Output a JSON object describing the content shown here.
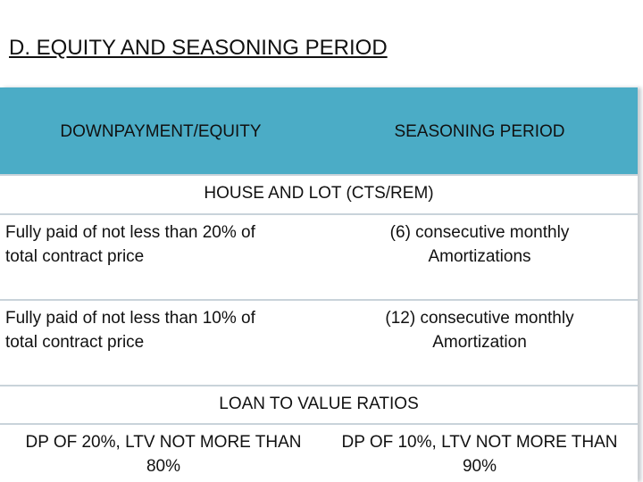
{
  "header": {
    "title": "D. EQUITY AND SEASONING PERIOD"
  },
  "table": {
    "columns": [
      "DOWNPAYMENT/EQUITY",
      "SEASONING PERIOD"
    ],
    "sections": [
      {
        "title": "HOUSE AND LOT (CTS/REM)",
        "rows": [
          [
            [
              "Fully paid of not less than 20% of",
              "total contract price"
            ],
            [
              "(6)  consecutive monthly",
              "Amortizations"
            ]
          ],
          [
            [
              "Fully paid of not less than 10% of",
              "total contract price"
            ],
            [
              "(12)  consecutive monthly",
              "Amortization"
            ]
          ]
        ]
      },
      {
        "title": "LOAN TO VALUE RATIOS",
        "rows": [
          [
            [
              "DP OF 20%, LTV NOT MORE THAN",
              "80%"
            ],
            [
              "DP OF 10%, LTV NOT MORE THAN",
              "90%"
            ]
          ]
        ]
      }
    ]
  }
}
